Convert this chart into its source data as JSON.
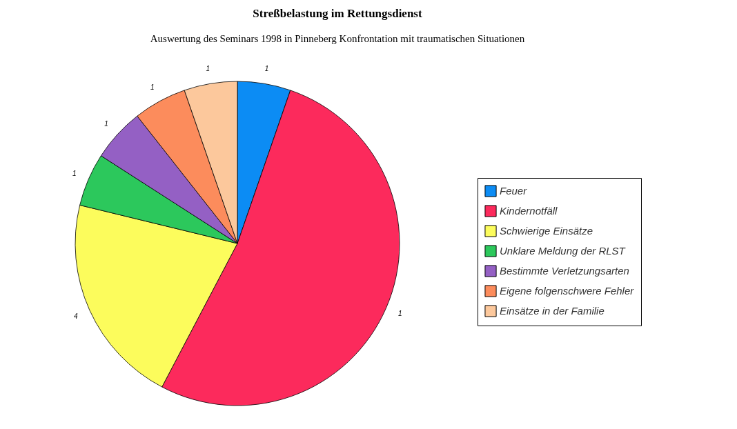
{
  "chart_data": {
    "type": "pie",
    "title": "Streßbelastung im Rettungsdienst",
    "subtitle": "Auswertung des Seminars 1998 in Pinneberg  Konfrontation mit traumatischen Situationen",
    "categories": [
      "Feuer",
      "Kindernotfäll",
      "Schwierige  Einsätze",
      "Unklare Meldung der RLST",
      "Bestimmte Verletzungsarten",
      "Eigene folgenschwere Fehler",
      "Einsätze in der Familie"
    ],
    "values": [
      5.3,
      52.4,
      21.1,
      5.3,
      5.3,
      5.3,
      5.3
    ],
    "annotations": [
      "1",
      "1",
      "4",
      "1",
      "1",
      "1",
      "1"
    ],
    "colors": [
      "#0c8cf4",
      "#fc2a5c",
      "#fcfc5c",
      "#2cc85c",
      "#9460c4",
      "#fc8c5c",
      "#fcc89c"
    ],
    "legend": "right"
  }
}
